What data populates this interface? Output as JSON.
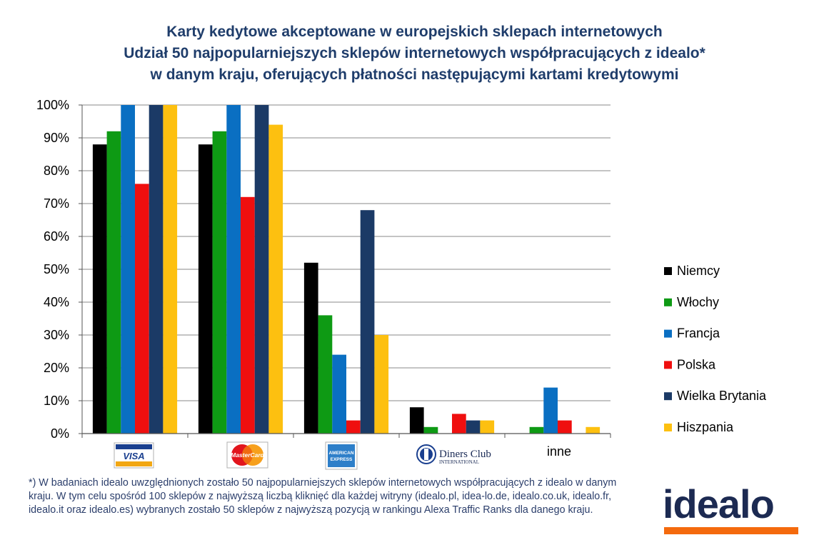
{
  "title_lines": [
    "Karty kedytowe akceptowane w europejskich sklepach internetowych",
    "Udział 50 najpopularniejszych sklepów internetowych współpracujących z idealo*",
    "w danym kraju, oferujących płatności następującymi kartami kredytowymi"
  ],
  "colors": {
    "title": "#1f3d6b",
    "grid": "#8a8a8a",
    "logo_text": "#1c2a52",
    "logo_bar": "#f46a0d"
  },
  "chart_data": {
    "type": "bar",
    "title": "Karty kedytowe akceptowane w europejskich sklepach internetowych",
    "subtitle": "Udział 50 najpopularniejszych sklepów internetowych współpracujących z idealo* w danym kraju, oferujących płatności następującymi kartami kredytowymi",
    "categories": [
      "VISA",
      "MasterCard",
      "American Express",
      "Diners Club International",
      "inne"
    ],
    "category_icons": [
      "visa-logo-icon",
      "mastercard-logo-icon",
      "american-express-logo-icon",
      "diners-club-logo-icon",
      null
    ],
    "category_labels": [
      "",
      "",
      "",
      "",
      "inne"
    ],
    "ylim": [
      0,
      100
    ],
    "yticks": [
      "0%",
      "10%",
      "20%",
      "30%",
      "40%",
      "50%",
      "60%",
      "70%",
      "80%",
      "90%",
      "100%"
    ],
    "grid": true,
    "legend_position": "right",
    "series": [
      {
        "name": "Niemcy",
        "color": "#000000",
        "values": [
          88,
          88,
          52,
          8,
          0
        ]
      },
      {
        "name": "Włochy",
        "color": "#0e9a14",
        "values": [
          92,
          92,
          36,
          2,
          2
        ]
      },
      {
        "name": "Francja",
        "color": "#0a6fc2",
        "values": [
          100,
          100,
          24,
          0,
          14
        ]
      },
      {
        "name": "Polska",
        "color": "#ef0f0f",
        "values": [
          76,
          72,
          4,
          6,
          4
        ]
      },
      {
        "name": "Wielka Brytania",
        "color": "#1b3a66",
        "values": [
          100,
          100,
          68,
          4,
          0
        ]
      },
      {
        "name": "Hiszpania",
        "color": "#fdc010",
        "values": [
          100,
          94,
          30,
          4,
          2
        ]
      }
    ]
  },
  "logo_texts": {
    "visa": "VISA",
    "mastercard": "MasterCard",
    "amex_top": "AMERICAN",
    "amex_bottom": "EXPRESS",
    "diners_main": "Diners Club",
    "diners_sub": "INTERNATIONAL"
  },
  "footnote": "*) W badaniach idealo uwzględnionych zostało 50 najpopularniejszych sklepów internetowych współpracujących z idealo w danym kraju. W tym celu spośród 100 sklepów z najwyższą liczbą kliknięć dla każdej witryny (idealo.pl, idea-lo.de, idealo.co.uk, idealo.fr, idealo.it oraz idealo.es) wybranych zostało 50 sklepów z najwyższą pozycją w rankingu Alexa Traffic Ranks dla danego kraju.",
  "brand": "idealo"
}
